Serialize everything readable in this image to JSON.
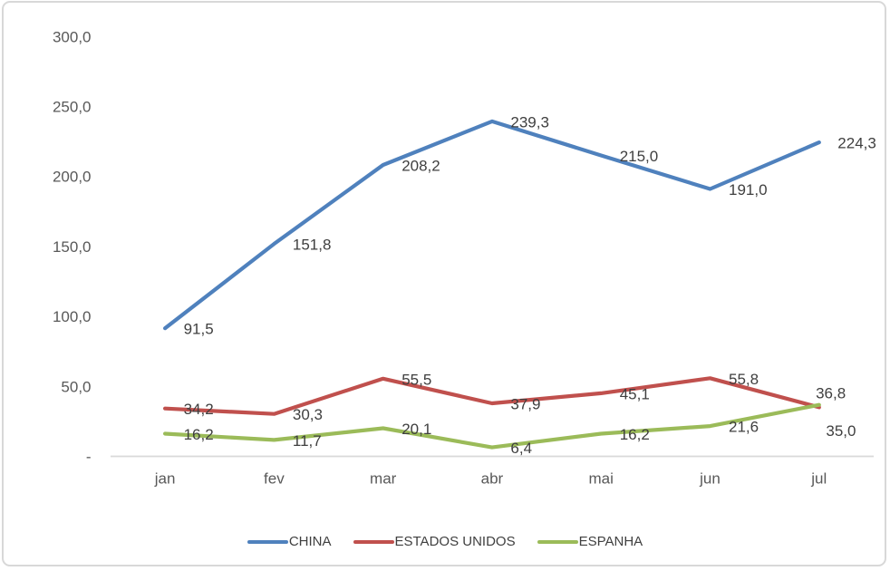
{
  "chart_data": {
    "type": "line",
    "title": "",
    "xlabel": "",
    "ylabel": "",
    "grid": false,
    "legend_position": "bottom",
    "data_labels": true,
    "categories": [
      "jan",
      "fev",
      "mar",
      "abr",
      "mai",
      "jun",
      "jul"
    ],
    "series": [
      {
        "name": "CHINA",
        "color": "#4f81bd",
        "values": [
          91.5,
          151.8,
          208.2,
          239.3,
          215.0,
          191.0,
          224.3
        ],
        "labels": [
          "91,5",
          "151,8",
          "208,2",
          "239,3",
          "215,0",
          "191,0",
          "224,3"
        ]
      },
      {
        "name": "ESTADOS UNIDOS",
        "color": "#c0504d",
        "values": [
          34.2,
          30.3,
          55.5,
          37.9,
          45.1,
          55.8,
          35.0
        ],
        "labels": [
          "34,2",
          "30,3",
          "55,5",
          "37,9",
          "45,1",
          "55,8",
          "35,0"
        ]
      },
      {
        "name": "ESPANHA",
        "color": "#9bbb59",
        "values": [
          16.2,
          11.7,
          20.1,
          6.4,
          16.2,
          21.6,
          36.8
        ],
        "labels": [
          "16,2",
          "11,7",
          "20,1",
          "6,4",
          "16,2",
          "21,6",
          "36,8"
        ]
      }
    ],
    "y_axis": {
      "min": 0,
      "max": 300,
      "ticks": [
        300,
        250,
        200,
        150,
        100,
        50,
        0
      ],
      "tick_labels": [
        "300,0",
        "250,0",
        "200,0",
        "150,0",
        "100,0",
        "50,0",
        "-"
      ]
    }
  },
  "colors": {
    "axis_line": "#d9d9d9",
    "tick_text": "#595959",
    "data_label_text": "#3f3f3f",
    "legend_text": "#3f3f3f",
    "frame_border": "#d8d8d8",
    "background": "#ffffff"
  }
}
